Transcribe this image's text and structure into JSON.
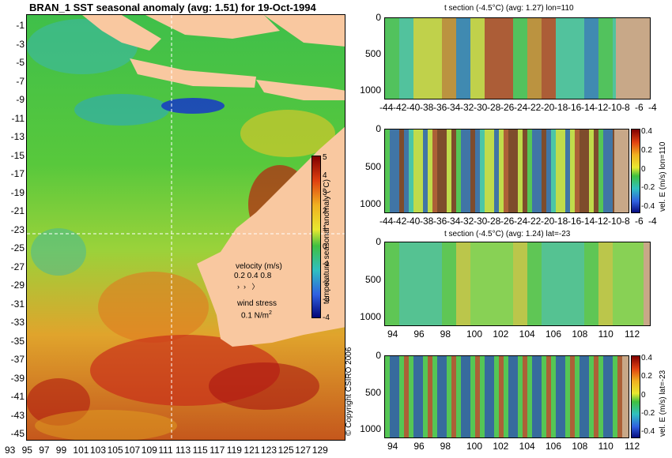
{
  "main_map": {
    "title": "BRAN_1 SST seasonal anomaly (avg: 1.51) for 19-Oct-1994",
    "lat_ticks": [
      "-1",
      "-3",
      "-5",
      "-7",
      "-9",
      "-11",
      "-13",
      "-15",
      "-17",
      "-19",
      "-21",
      "-23",
      "-25",
      "-27",
      "-29",
      "-31",
      "-33",
      "-35",
      "-37",
      "-39",
      "-41",
      "-43",
      "-45"
    ],
    "lon_ticks": [
      "93",
      "95",
      "97",
      "99",
      "101",
      "103",
      "105",
      "107",
      "109",
      "111",
      "113",
      "115",
      "117",
      "119",
      "121",
      "123",
      "125",
      "127",
      "129"
    ],
    "colorbar_ticks": [
      "5",
      "4",
      "3",
      "2",
      "1",
      "0",
      "-1",
      "-2",
      "-3",
      "-4"
    ],
    "colorbar_label": "temperature seasonal anomaly (°C)",
    "velocity_label": "velocity (m/s)",
    "velocity_scale": "0.2 0.4 0.8",
    "wind_label": "wind stress",
    "wind_value": "0.1 N/m",
    "wind_exp": "2",
    "copyright": "© Copyright CSIRO 2006",
    "colors": {
      "land": "#f9c8a0",
      "ocean_base": "#3cc83c"
    }
  },
  "panels": [
    {
      "title": "t section (-4.5°C) (avg: 1.27) lon=110",
      "y_ticks": [
        "0",
        "500",
        "1000"
      ],
      "x_ticks": [
        "-44",
        "-42",
        "-40",
        "-38",
        "-36",
        "-34",
        "-32",
        "-30",
        "-28",
        "-26",
        "-24",
        "-22",
        "-20",
        "-18",
        "-16",
        "-14",
        "-12",
        "-10",
        "-8",
        "-6",
        "-4"
      ],
      "right_label": "",
      "colorbar_ticks": []
    },
    {
      "title": "",
      "y_ticks": [
        "0",
        "500",
        "1000"
      ],
      "x_ticks": [
        "-44",
        "-42",
        "-40",
        "-38",
        "-36",
        "-34",
        "-32",
        "-30",
        "-28",
        "-26",
        "-24",
        "-22",
        "-20",
        "-18",
        "-16",
        "-14",
        "-12",
        "-10",
        "-8",
        "-6",
        "-4"
      ],
      "right_label": "vel. E (m/s) lon=110",
      "colorbar_ticks": [
        "0.4",
        "0.2",
        "0",
        "-0.2",
        "-0.4"
      ]
    },
    {
      "title": "t section (-4.5°C) (avg: 1.24) lat=-23",
      "y_ticks": [
        "0",
        "500",
        "1000"
      ],
      "x_ticks": [
        "94",
        "96",
        "98",
        "100",
        "102",
        "104",
        "106",
        "108",
        "110",
        "112"
      ],
      "right_label": "",
      "colorbar_ticks": []
    },
    {
      "title": "",
      "y_ticks": [
        "0",
        "500",
        "1000"
      ],
      "x_ticks": [
        "94",
        "96",
        "98",
        "100",
        "102",
        "104",
        "106",
        "108",
        "110",
        "112"
      ],
      "right_label": "vel. E (m/s) lat=-23",
      "colorbar_ticks": [
        "0.4",
        "0.2",
        "0",
        "-0.2",
        "-0.4"
      ]
    }
  ]
}
